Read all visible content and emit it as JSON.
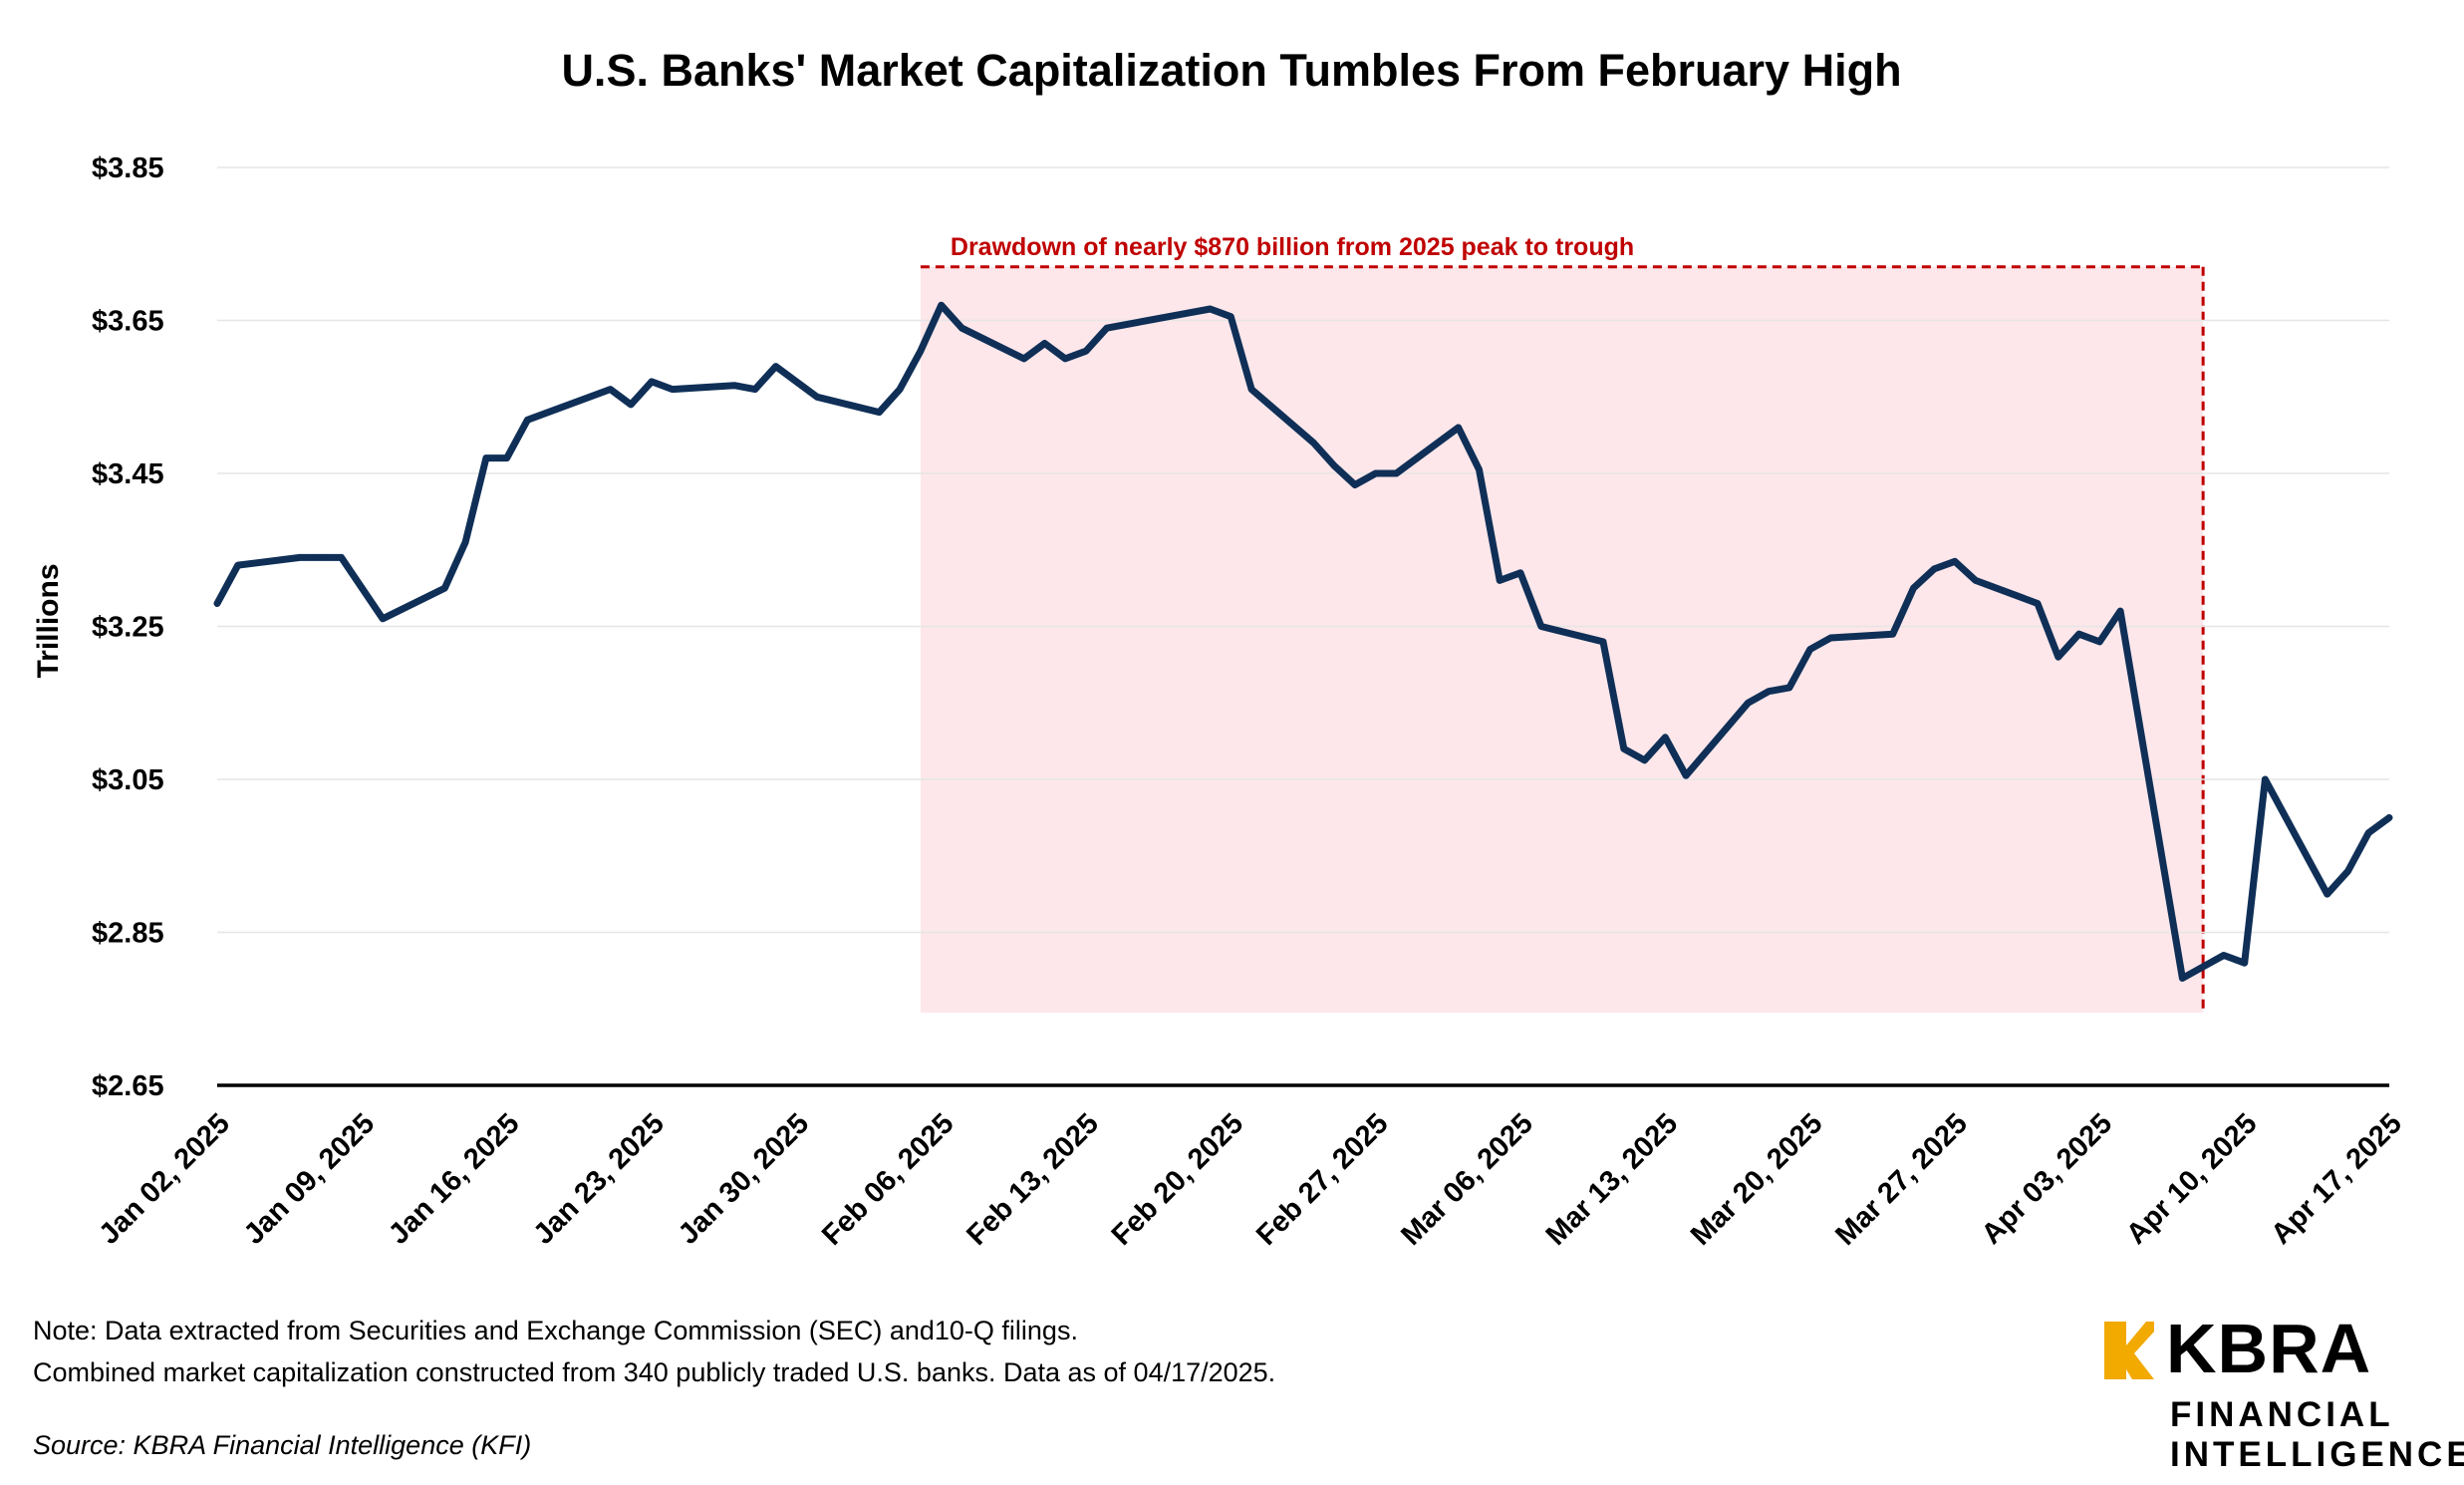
{
  "chart_data": {
    "type": "line",
    "title": "U.S. Banks' Market Capitalization Tumbles From February High",
    "ylabel": "Trillions",
    "xlabel": "",
    "ylim": [
      2.65,
      3.85
    ],
    "yticks": [
      2.65,
      2.85,
      3.05,
      3.25,
      3.45,
      3.65,
      3.85
    ],
    "ytick_labels": [
      "$2.65",
      "$2.85",
      "$3.05",
      "$3.25",
      "$3.45",
      "$3.65",
      "$3.85"
    ],
    "xticks": [
      "2025-01-02",
      "2025-01-09",
      "2025-01-16",
      "2025-01-23",
      "2025-01-30",
      "2025-02-06",
      "2025-02-13",
      "2025-02-20",
      "2025-02-27",
      "2025-03-06",
      "2025-03-13",
      "2025-03-20",
      "2025-03-27",
      "2025-04-03",
      "2025-04-10",
      "2025-04-17"
    ],
    "xtick_labels": [
      "Jan 02, 2025",
      "Jan 09, 2025",
      "Jan 16, 2025",
      "Jan 23, 2025",
      "Jan 30, 2025",
      "Feb 06, 2025",
      "Feb 13, 2025",
      "Feb 20, 2025",
      "Feb 27, 2025",
      "Mar 06, 2025",
      "Mar 13, 2025",
      "Mar 20, 2025",
      "Mar 27, 2025",
      "Apr 03, 2025",
      "Apr 10, 2025",
      "Apr 17, 2025"
    ],
    "grid": true,
    "series": [
      {
        "color": "#0f2f57",
        "x": [
          "2025-01-02",
          "2025-01-03",
          "2025-01-06",
          "2025-01-07",
          "2025-01-08",
          "2025-01-10",
          "2025-01-13",
          "2025-01-14",
          "2025-01-15",
          "2025-01-16",
          "2025-01-17",
          "2025-01-21",
          "2025-01-22",
          "2025-01-23",
          "2025-01-24",
          "2025-01-27",
          "2025-01-28",
          "2025-01-29",
          "2025-01-30",
          "2025-01-31",
          "2025-02-03",
          "2025-02-04",
          "2025-02-05",
          "2025-02-06",
          "2025-02-07",
          "2025-02-10",
          "2025-02-11",
          "2025-02-12",
          "2025-02-13",
          "2025-02-14",
          "2025-02-18",
          "2025-02-19",
          "2025-02-20",
          "2025-02-21",
          "2025-02-24",
          "2025-02-25",
          "2025-02-26",
          "2025-02-27",
          "2025-02-28",
          "2025-03-03",
          "2025-03-04",
          "2025-03-05",
          "2025-03-06",
          "2025-03-07",
          "2025-03-10",
          "2025-03-11",
          "2025-03-12",
          "2025-03-13",
          "2025-03-14",
          "2025-03-17",
          "2025-03-18",
          "2025-03-19",
          "2025-03-20",
          "2025-03-21",
          "2025-03-24",
          "2025-03-25",
          "2025-03-26",
          "2025-03-27",
          "2025-03-28",
          "2025-03-31",
          "2025-04-01",
          "2025-04-02",
          "2025-04-03",
          "2025-04-04",
          "2025-04-07",
          "2025-04-08",
          "2025-04-09",
          "2025-04-10",
          "2025-04-11",
          "2025-04-14",
          "2025-04-15",
          "2025-04-16",
          "2025-04-17"
        ],
        "y": [
          3.28,
          3.33,
          3.34,
          3.34,
          3.34,
          3.26,
          3.3,
          3.36,
          3.47,
          3.47,
          3.52,
          3.56,
          3.54,
          3.57,
          3.56,
          3.565,
          3.56,
          3.59,
          3.57,
          3.55,
          3.53,
          3.56,
          3.61,
          3.67,
          3.64,
          3.6,
          3.62,
          3.6,
          3.61,
          3.64,
          3.66,
          3.665,
          3.655,
          3.56,
          3.49,
          3.46,
          3.435,
          3.45,
          3.45,
          3.51,
          3.455,
          3.31,
          3.32,
          3.25,
          3.23,
          3.09,
          3.075,
          3.105,
          3.055,
          3.15,
          3.165,
          3.17,
          3.22,
          3.235,
          3.24,
          3.3,
          3.325,
          3.335,
          3.31,
          3.28,
          3.21,
          3.24,
          3.23,
          3.27,
          2.79,
          2.805,
          2.82,
          2.81,
          3.05,
          2.9,
          2.93,
          2.98,
          3.0
        ]
      }
    ],
    "annotations": [
      {
        "text": "Drawdown of nearly $870 billion from 2025 peak to trough",
        "x_start": "2025-02-05",
        "x_end": "2025-04-08",
        "y_top": 3.72,
        "y_bottom": 2.745,
        "fill": "#fde7ea",
        "color": "#c00000"
      }
    ]
  },
  "footer": {
    "note_line1": "Note: Data extracted from Securities and Exchange Commission (SEC) and10-Q filings.",
    "note_line2": "Combined market capitalization constructed from 340 publicly traded U.S. banks. Data as of 04/17/2025.",
    "source": "Source: KBRA Financial Intelligence (KFI)"
  },
  "logo": {
    "word": "KBRA",
    "line1": "FINANCIAL",
    "line2": "INTELLIGENCE",
    "mark_color": "#f2a900",
    "icon": "kbra-k-mark"
  }
}
